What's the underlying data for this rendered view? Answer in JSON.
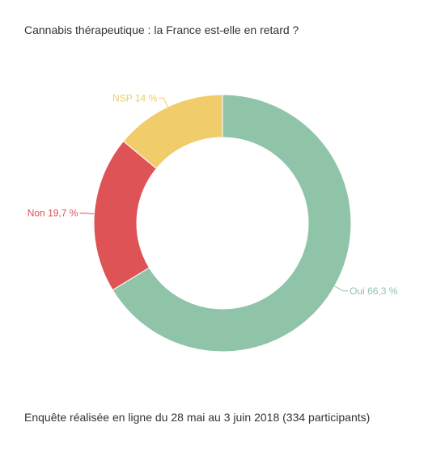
{
  "chart_data": {
    "type": "pie",
    "variant": "donut",
    "title": "Cannabis thérapeutique : la France est-elle en retard ?",
    "footer": "Enquête réalisée en ligne du 28 mai au 3 juin 2018  (334 participants)",
    "slices": [
      {
        "label": "Oui",
        "value": 66.3,
        "display": "Oui 66,3 %",
        "color": "#8fc4a9"
      },
      {
        "label": "Non",
        "value": 19.7,
        "display": "Non 19,7 %",
        "color": "#de5356"
      },
      {
        "label": "NSP",
        "value": 14,
        "display": "NSP 14 %",
        "color": "#f0cc6a"
      }
    ],
    "legend": "none"
  }
}
